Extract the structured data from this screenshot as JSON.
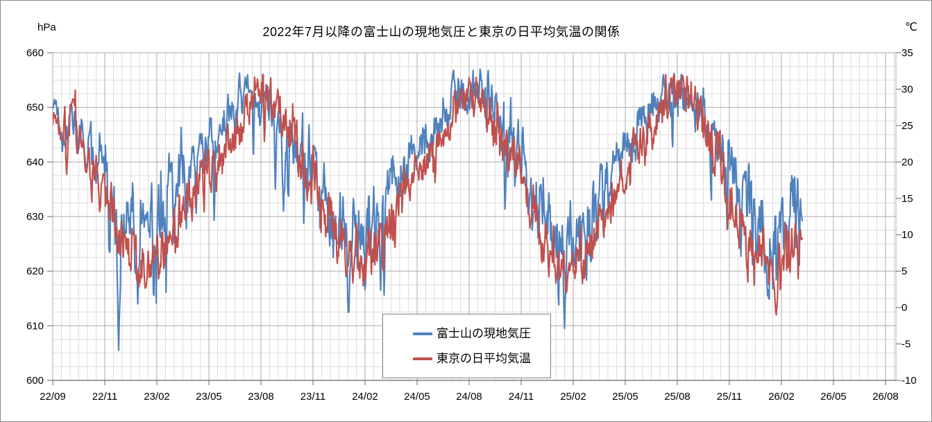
{
  "header": {
    "title": "2022年7月以降の富士山の現地気圧と東京の日平均気温の関係"
  },
  "chart_data": {
    "type": "line",
    "title": "2022年7月以降の富士山の現地気圧と東京の日平均気温の関係",
    "grid": {
      "minor_color": "#dcdcdc",
      "major_color": "#ababab",
      "axis_color": "#666666"
    },
    "left_axis": {
      "unit": "hPa",
      "min": 600,
      "max": 660,
      "major_tick": 10,
      "minor_tick": 2.5,
      "tick_labels": [
        "660",
        "650",
        "640",
        "630",
        "620",
        "610",
        "600"
      ]
    },
    "right_axis": {
      "unit": "℃",
      "min": -10,
      "max": 35,
      "major_tick": 5,
      "tick_labels": [
        "35",
        "30",
        "25",
        "20",
        "15",
        "10",
        "5",
        "0",
        "-5",
        "-10"
      ]
    },
    "x_axis": {
      "tick_labels": [
        "22/09",
        "22/11",
        "23/02",
        "23/05",
        "23/08",
        "23/11",
        "24/02",
        "24/05",
        "24/08",
        "24/11",
        "25/02",
        "25/05",
        "25/08",
        "25/11",
        "26/02",
        "26/05",
        "26/08"
      ]
    },
    "months": [
      "2022-09",
      "2022-10",
      "2022-11",
      "2022-12",
      "2023-01",
      "2023-02",
      "2023-03",
      "2023-04",
      "2023-05",
      "2023-06",
      "2023-07",
      "2023-08",
      "2023-09",
      "2023-10",
      "2023-11",
      "2023-12",
      "2024-01",
      "2024-02",
      "2024-03",
      "2024-04",
      "2024-05",
      "2024-06",
      "2024-07",
      "2024-08",
      "2024-09",
      "2024-10",
      "2024-11",
      "2024-12",
      "2025-01",
      "2025-02",
      "2025-03",
      "2025-04",
      "2025-05",
      "2025-06",
      "2025-07",
      "2025-08",
      "2025-09",
      "2025-10",
      "2025-11",
      "2025-12",
      "2026-01",
      "2026-02",
      "2026-03"
    ],
    "data_end_month": 42.2,
    "series": [
      {
        "name": "富士山の現地気圧",
        "axis": "left",
        "color": "#4F81BD",
        "monthly_mean": [
          649,
          643,
          633,
          629,
          629,
          632,
          637,
          642,
          646,
          650,
          652.5,
          651.5,
          647,
          642,
          634,
          630,
          628,
          630.5,
          635,
          641,
          645,
          649,
          652.5,
          653,
          649.5,
          643,
          635,
          629,
          626.5,
          627,
          633,
          640,
          645.5,
          649.5,
          652.5,
          652.5,
          648.5,
          643,
          636,
          629.5,
          626.5,
          629,
          633
        ],
        "noise": {
          "seed": 1337,
          "ar": 0.55,
          "sd": 1.7,
          "winter_boost": 1.8,
          "dip_chance": 0.016,
          "dip_depth": 11,
          "two_sided": false,
          "clamp": [
            604.5,
            657.3
          ]
        }
      },
      {
        "name": "東京の日平均気温",
        "axis": "right",
        "color": "#C0504D",
        "monthly_mean": [
          24.5,
          17.5,
          14,
          7.5,
          5.7,
          7.3,
          12.9,
          16.3,
          19,
          23.2,
          28.7,
          29.2,
          26.7,
          18.9,
          14.4,
          9.4,
          7.1,
          8.3,
          10.7,
          16.6,
          20,
          23.1,
          28.7,
          29,
          26.5,
          19.6,
          13.9,
          8.1,
          5.4,
          5.3,
          10.5,
          16.1,
          20,
          24.5,
          28.8,
          29.5,
          26.5,
          18,
          12,
          7,
          4.5,
          6,
          10
        ],
        "noise": {
          "seed": 24601,
          "ar": 0.55,
          "sd": 1.35,
          "winter_boost": 1.25,
          "dip_chance": 0.014,
          "dip_depth": 4.5,
          "two_sided": true,
          "clamp": [
            -1.3,
            32.0
          ]
        }
      }
    ],
    "notable_extremes": [
      {
        "series": 0,
        "month": 0.07,
        "value": 651.5
      },
      {
        "series": 0,
        "month": 2.8,
        "value": 605.5
      },
      {
        "series": 0,
        "month": 3.9,
        "value": 614
      },
      {
        "series": 0,
        "month": 10.1,
        "value": 655.5
      },
      {
        "series": 0,
        "month": 12.3,
        "value": 631
      },
      {
        "series": 0,
        "month": 16.05,
        "value": 611.5
      },
      {
        "series": 0,
        "month": 17.9,
        "value": 616.5
      },
      {
        "series": 0,
        "month": 22.1,
        "value": 656.8
      },
      {
        "series": 0,
        "month": 28.5,
        "value": 609.5
      },
      {
        "series": 0,
        "month": 34.2,
        "value": 656
      },
      {
        "series": 0,
        "month": 40.2,
        "value": 615.5
      },
      {
        "series": 1,
        "month": 0.07,
        "value": 26
      },
      {
        "series": 1,
        "month": 4.35,
        "value": 2.3
      },
      {
        "series": 1,
        "month": 10.8,
        "value": 31.4
      },
      {
        "series": 1,
        "month": 23.0,
        "value": 31.6
      },
      {
        "series": 1,
        "month": 28.6,
        "value": 2.0
      },
      {
        "series": 1,
        "month": 35.3,
        "value": 31.9
      },
      {
        "series": 1,
        "month": 40.7,
        "value": -1.0
      }
    ],
    "legend": {
      "entries": [
        "富士山の現地気圧",
        "東京の日平均気温"
      ],
      "position": "inside-bottom-center"
    }
  }
}
